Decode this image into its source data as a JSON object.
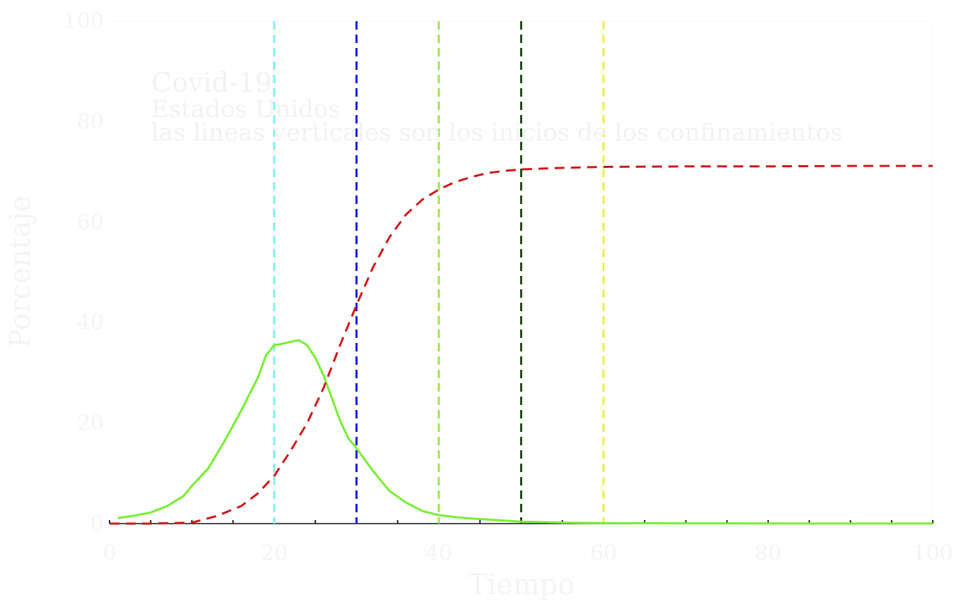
{
  "chart_data": {
    "type": "line",
    "title": "",
    "xlabel": "Tiempo",
    "ylabel": "Porcentaje",
    "xlim": [
      0,
      100
    ],
    "ylim": [
      0,
      100
    ],
    "x_ticks": [
      "0",
      "20",
      "40",
      "60",
      "80",
      "100"
    ],
    "y_ticks": [
      "0",
      "20",
      "40",
      "60",
      "80",
      "100"
    ],
    "grid": false,
    "annotations": [
      "Covid-19",
      "Estados Unidos",
      "las lineas verticales son los inicios de los confinamientos"
    ],
    "series": [
      {
        "color": "#77ee33",
        "style": "solid",
        "x": [
          1,
          3,
          5,
          7,
          9,
          10,
          12,
          14,
          16,
          18,
          19,
          20,
          21,
          22,
          23,
          24,
          25,
          26,
          27,
          28,
          29,
          30,
          32,
          34,
          36,
          38,
          40,
          42,
          44,
          46,
          48,
          50,
          55,
          60,
          70,
          80,
          90,
          100
        ],
        "y": [
          1.1,
          1.6,
          2.2,
          3.5,
          5.5,
          7.5,
          11,
          16.5,
          22.5,
          29,
          33.5,
          35.5,
          35.8,
          36.2,
          36.5,
          35.5,
          33,
          29.5,
          25,
          20.5,
          17,
          15,
          10.5,
          6.5,
          4.2,
          2.5,
          1.7,
          1.3,
          1.0,
          0.8,
          0.6,
          0.4,
          0.2,
          0.1,
          0.05,
          0.03,
          0.02,
          0.01
        ]
      },
      {
        "color": "#d01818",
        "style": "dashed",
        "x": [
          0,
          5,
          10,
          13,
          16,
          18,
          20,
          22,
          24,
          26,
          28,
          30,
          32,
          34,
          36,
          38,
          40,
          42,
          44,
          46,
          48,
          50,
          55,
          60,
          70,
          80,
          90,
          100
        ],
        "y": [
          0,
          0,
          0.2,
          1.5,
          3.5,
          6,
          9.5,
          14.5,
          20,
          27,
          35.5,
          43.5,
          51,
          57,
          61.5,
          64.5,
          66.5,
          68,
          69,
          69.8,
          70.2,
          70.5,
          70.8,
          71,
          71.1,
          71.1,
          71.2,
          71.2
        ]
      }
    ],
    "vertical_lines": [
      {
        "x": 20,
        "color": "#7ff0f0"
      },
      {
        "x": 30,
        "color": "#1a22d8"
      },
      {
        "x": 40,
        "color": "#99e844"
      },
      {
        "x": 50,
        "color": "#244d1a"
      },
      {
        "x": 60,
        "color": "#f0ee44"
      }
    ]
  }
}
